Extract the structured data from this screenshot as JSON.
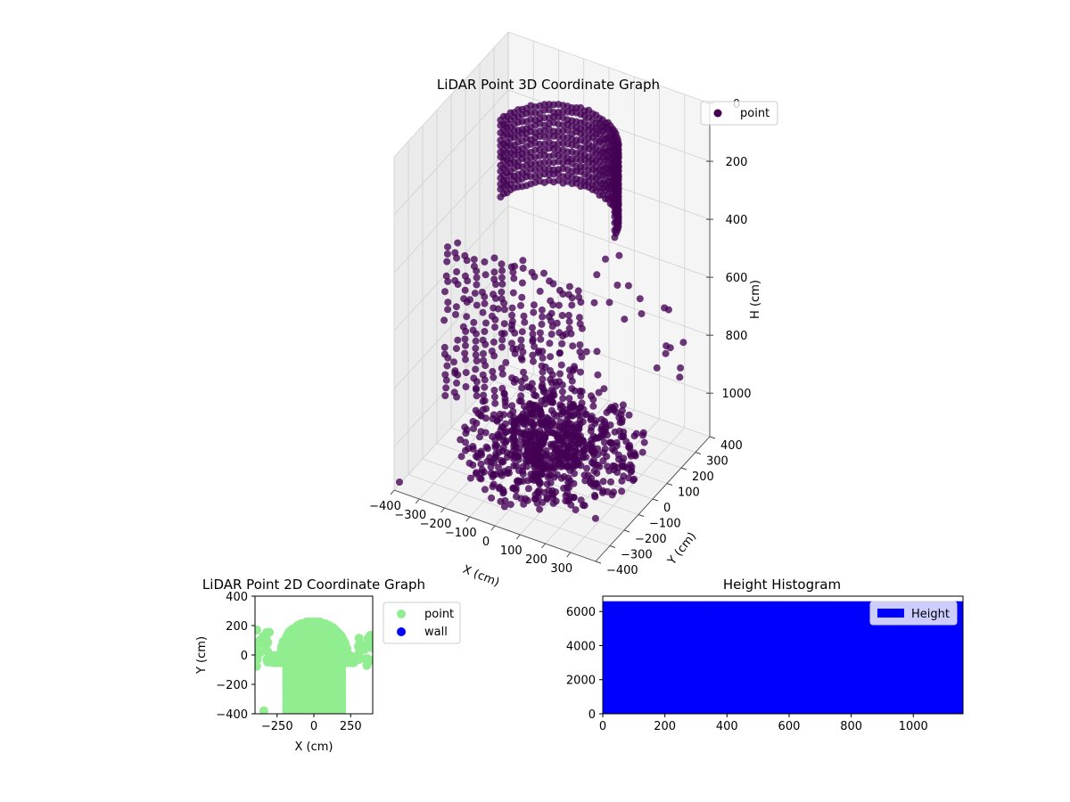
{
  "chart_data": [
    {
      "type": "scatter3d",
      "title": "LiDAR Point 3D Coordinate Graph",
      "xlabel": "X (cm)",
      "ylabel": "Y (cm)",
      "zlabel": "H (cm)",
      "xlim": [
        -400,
        400
      ],
      "ylim": [
        -400,
        400
      ],
      "zlim": [
        0,
        1150
      ],
      "z_inverted": true,
      "xticks": [
        "−400",
        "−300",
        "−200",
        "−100",
        "0",
        "100",
        "200",
        "300"
      ],
      "xtick_values": [
        -400,
        -300,
        -200,
        -100,
        0,
        100,
        200,
        300
      ],
      "yticks": [
        "−400",
        "−300",
        "−200",
        "−100",
        "0",
        "100",
        "200",
        "300",
        "400"
      ],
      "ytick_values": [
        -400,
        -300,
        -200,
        -100,
        0,
        100,
        200,
        300,
        400
      ],
      "zticks": [
        "0",
        "200",
        "400",
        "600",
        "800",
        "1000"
      ],
      "ztick_values": [
        0,
        200,
        400,
        600,
        800,
        1000
      ],
      "legend": {
        "placement": "top-right",
        "entries": [
          {
            "label": "point",
            "color": "#440154"
          }
        ]
      },
      "color": "#440154",
      "grid": true,
      "point_cloud": {
        "ceiling_arc": {
          "radius": 230,
          "h_range": [
            50,
            320
          ],
          "angle_range_deg": [
            190,
            350
          ]
        },
        "wall_columns": {
          "y": -300,
          "x_range": [
            -250,
            300
          ],
          "h_range": [
            300,
            850
          ]
        },
        "floor_ring": {
          "radius_range": [
            40,
            320
          ],
          "h_range": [
            1050,
            1140
          ]
        },
        "scattered": [
          [
            -390,
            -380,
            1130
          ],
          [
            -300,
            -150,
            850
          ],
          [
            380,
            250,
            750
          ],
          [
            350,
            200,
            620
          ],
          [
            200,
            50,
            560
          ],
          [
            -100,
            -200,
            540
          ],
          [
            150,
            100,
            900
          ],
          [
            -200,
            30,
            880
          ],
          [
            250,
            -150,
            960
          ],
          [
            300,
            300,
            820
          ]
        ]
      }
    },
    {
      "type": "scatter",
      "title": "LiDAR Point 2D Coordinate Graph",
      "xlabel": "X (cm)",
      "ylabel": "Y (cm)",
      "xlim": [
        -400,
        400
      ],
      "ylim": [
        -400,
        400
      ],
      "xticks": [
        "−250",
        "0",
        "250"
      ],
      "xtick_values": [
        -250,
        0,
        250
      ],
      "yticks": [
        "−400",
        "−200",
        "0",
        "200",
        "400"
      ],
      "ytick_values": [
        -400,
        -200,
        0,
        200,
        400
      ],
      "legend": {
        "placement": "outside-right",
        "entries": [
          {
            "label": "point",
            "color": "#90ee90"
          },
          {
            "label": "wall",
            "color": "#0000ff"
          }
        ]
      },
      "series": [
        {
          "name": "point",
          "color": "#90ee90",
          "region": {
            "top_arc_radius": 230,
            "body_x_range": [
              -280,
              280
            ],
            "y_range": [
              -400,
              230
            ]
          },
          "outliers": [
            [
              -340,
              -380
            ],
            [
              390,
              50
            ],
            [
              -390,
              60
            ]
          ]
        },
        {
          "name": "wall",
          "color": "#0000ff",
          "points": []
        }
      ]
    },
    {
      "type": "histogram",
      "title": "Height Histogram",
      "xlim": [
        0,
        1160
      ],
      "ylim": [
        0,
        6900
      ],
      "xticks": [
        "0",
        "200",
        "400",
        "600",
        "800",
        "1000"
      ],
      "xtick_values": [
        0,
        200,
        400,
        600,
        800,
        1000
      ],
      "yticks": [
        "0",
        "2000",
        "4000",
        "6000"
      ],
      "ytick_values": [
        0,
        2000,
        4000,
        6000
      ],
      "legend": {
        "placement": "top-right",
        "entries": [
          {
            "label": "Height",
            "color": "#0000ff"
          }
        ]
      },
      "bins": {
        "start": 0,
        "end": 1160,
        "count": 58
      },
      "bar_height": 6600,
      "color": "#0000ff"
    }
  ]
}
